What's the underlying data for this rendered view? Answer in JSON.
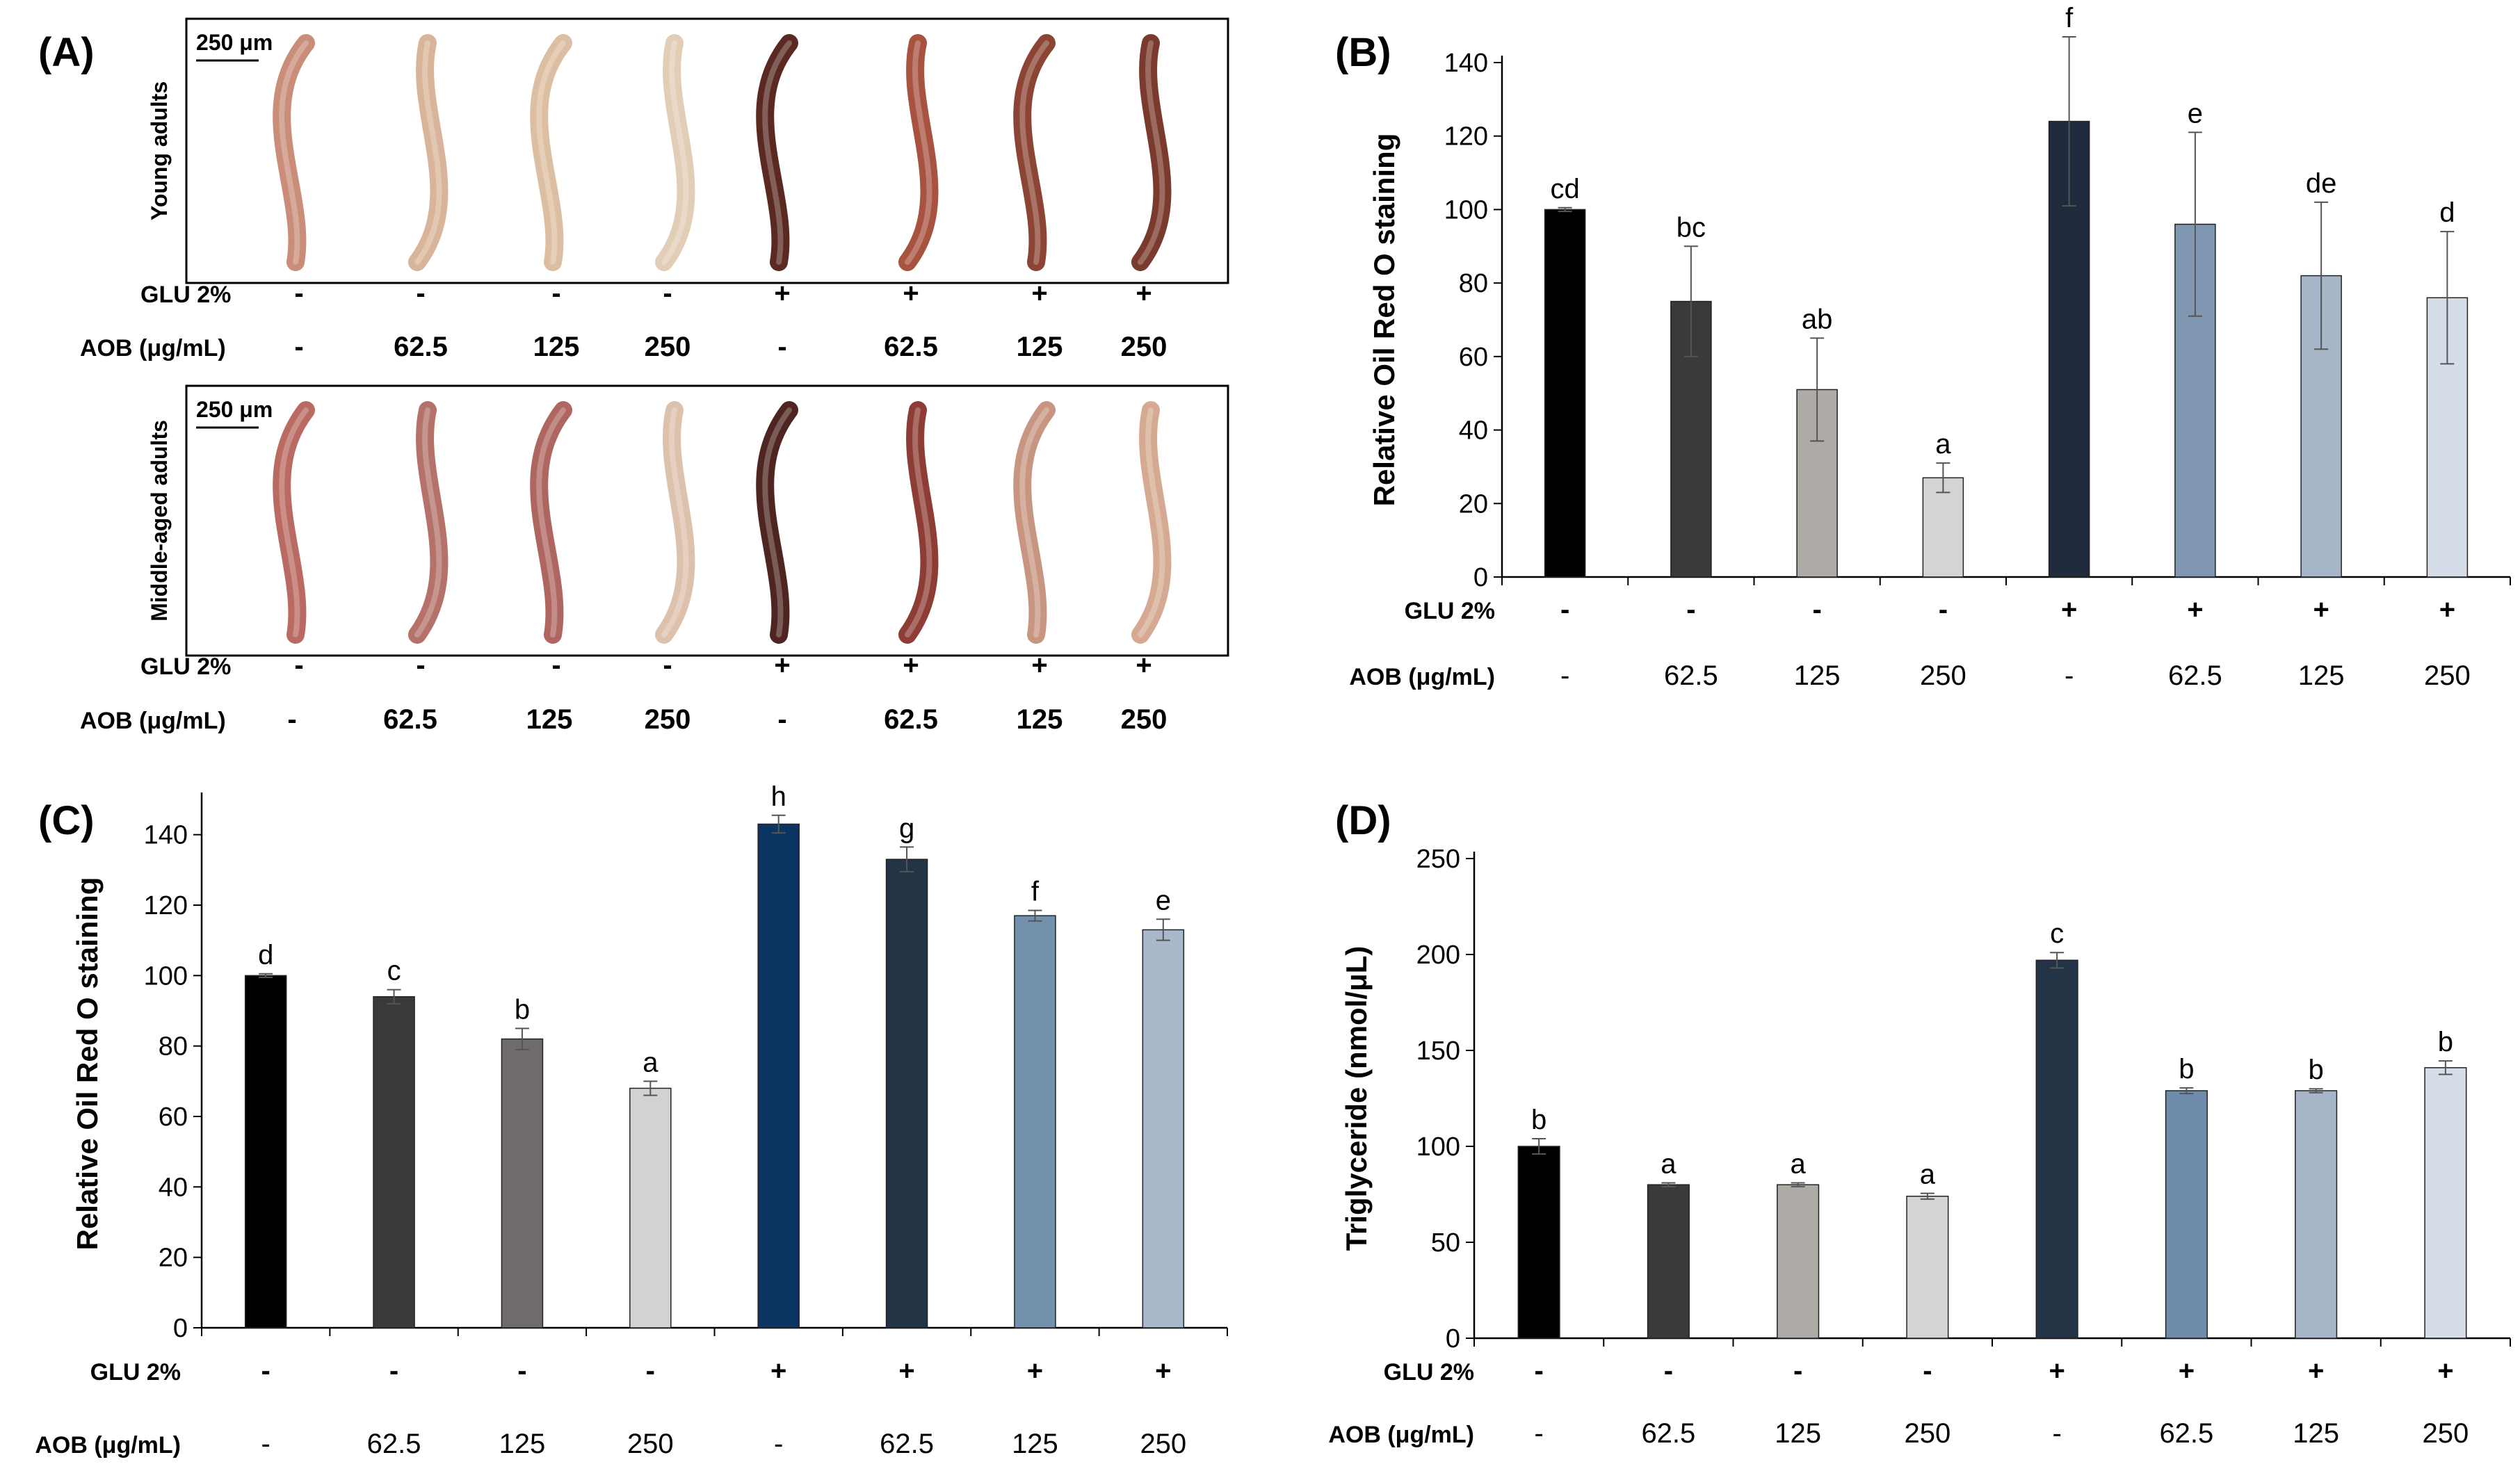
{
  "panel_a": {
    "label": "(A)",
    "rows": [
      {
        "side_label": "Young adults",
        "scale_label": "250  μm",
        "glu_label": "GLU 2%",
        "glu": [
          "-",
          "-",
          "-",
          "-",
          "+",
          "+",
          "+",
          "+"
        ],
        "aob_label": "AOB (μg/mL)",
        "aob": [
          "-",
          "62.5",
          "125",
          "250",
          "-",
          "62.5",
          "125",
          "250"
        ],
        "worm_colors": [
          "#c98d7a",
          "#d8b49a",
          "#dcbfa2",
          "#e2cdb6",
          "#5a2a22",
          "#a8533f",
          "#8c4434",
          "#7a3a2e"
        ]
      },
      {
        "side_label": "Middle-aged adults",
        "scale_label": "250  μm",
        "glu_label": "GLU 2%",
        "glu": [
          "-",
          "-",
          "-",
          "-",
          "+",
          "+",
          "+",
          "+"
        ],
        "aob_label": "AOB (μg/mL)",
        "aob": [
          "-",
          "62.5",
          "125",
          "250",
          "-",
          "62.5",
          "125",
          "250"
        ],
        "worm_colors": [
          "#b96a62",
          "#b5726a",
          "#b06660",
          "#dcc1ad",
          "#4e2520",
          "#8e3c36",
          "#c89680",
          "#d6aa92"
        ]
      }
    ]
  },
  "chart_data": [
    {
      "panel": "(B)",
      "type": "bar",
      "ylabel": "Relative Oil Red O staining",
      "ylim": [
        0,
        140
      ],
      "yticks": [
        "0",
        "20",
        "40",
        "60",
        "80",
        "100",
        "120",
        "140"
      ],
      "glu_label": "GLU 2%",
      "glu": [
        "-",
        "-",
        "-",
        "-",
        "+",
        "+",
        "+",
        "+"
      ],
      "aob_label": "AOB (μg/mL)",
      "aob": [
        "-",
        "62.5",
        "125",
        "250",
        "-",
        "62.5",
        "125",
        "250"
      ],
      "values": [
        100,
        75,
        51,
        27,
        124,
        96,
        82,
        76
      ],
      "errors": [
        0.5,
        15,
        14,
        4,
        23,
        25,
        20,
        18
      ],
      "letters": [
        "cd",
        "bc",
        "ab",
        "a",
        "f",
        "e",
        "de",
        "d"
      ],
      "colors": [
        "#000000",
        "#3a3a3a",
        "#aeaaa6",
        "#d4d4d4",
        "#1f2b3d",
        "#7f97b0",
        "#a7b5c8",
        "#d4dde8"
      ]
    },
    {
      "panel": "(C)",
      "type": "bar",
      "ylabel": "Relative Oil Red O staining",
      "ylim": [
        0,
        150
      ],
      "yticks": [
        "0",
        "20",
        "40",
        "60",
        "80",
        "100",
        "120",
        "140"
      ],
      "glu_label": "GLU 2%",
      "glu": [
        "-",
        "-",
        "-",
        "-",
        "+",
        "+",
        "+",
        "+"
      ],
      "aob_label": "AOB (μg/mL)",
      "aob": [
        "-",
        "62.5",
        "125",
        "250",
        "-",
        "62.5",
        "125",
        "250"
      ],
      "values": [
        100,
        94,
        82,
        68,
        143,
        133,
        117,
        113
      ],
      "errors": [
        0.5,
        2,
        3,
        2,
        2.5,
        3.5,
        1.5,
        3
      ],
      "letters": [
        "d",
        "c",
        "b",
        "a",
        "h",
        "g",
        "f",
        "e"
      ],
      "colors": [
        "#000000",
        "#3a3a3a",
        "#6f6b6a",
        "#d2d2d2",
        "#0c3462",
        "#243447",
        "#7390ad",
        "#a9b8cb"
      ]
    },
    {
      "panel": "(D)",
      "type": "bar",
      "ylabel": "Triglyceride (nmol/μL)",
      "ylim": [
        0,
        250
      ],
      "yticks": [
        "0",
        "50",
        "100",
        "150",
        "200",
        "250"
      ],
      "glu_label": "GLU 2%",
      "glu": [
        "-",
        "-",
        "-",
        "-",
        "+",
        "+",
        "+",
        "+"
      ],
      "aob_label": "AOB (μg/mL)",
      "aob": [
        "-",
        "62.5",
        "125",
        "250",
        "-",
        "62.5",
        "125",
        "250"
      ],
      "values": [
        100,
        80,
        80,
        74,
        197,
        129,
        129,
        141
      ],
      "errors": [
        4,
        1,
        1,
        1.5,
        4,
        1.5,
        1,
        3.5
      ],
      "letters": [
        "b",
        "a",
        "a",
        "a",
        "c",
        "b",
        "b",
        "b"
      ],
      "colors": [
        "#000000",
        "#3a3a3a",
        "#aeaaa6",
        "#d4d4d4",
        "#243447",
        "#6f8cab",
        "#a7b5c8",
        "#d4dde8"
      ]
    }
  ]
}
